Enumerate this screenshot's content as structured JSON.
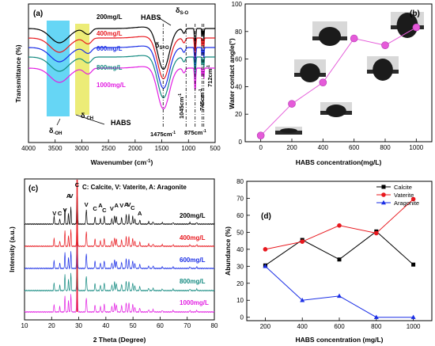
{
  "panels": {
    "a": {
      "label": "(a)",
      "xlabel": "Wavenumber (cm",
      "xlabel_sup": "-1",
      "xlabel_end": ")",
      "ylabel": "Transmittance (%)",
      "ticks": [
        "4000",
        "3500",
        "3000",
        "2500",
        "2000",
        "1500",
        "1000",
        "500"
      ],
      "series": [
        {
          "name": "200mg/L",
          "color": "#000000"
        },
        {
          "name": "400mg/L",
          "color": "#e8181e"
        },
        {
          "name": "600mg/L",
          "color": "#1a2ee6"
        },
        {
          "name": "800mg/L",
          "color": "#138a80"
        },
        {
          "name": "1000mg/L",
          "color": "#e21ee2"
        }
      ],
      "annotations": {
        "habs_top": "HABS",
        "dso_a": "δ",
        "dso_a_sub": "S-O",
        "dso_b": "δ",
        "dso_b_sub": "S=O",
        "doh": "δ",
        "doh_sub": "-OH",
        "dch": "δ",
        "dch_sub": "-CH",
        "habs_bottom": "HABS",
        "p1475": "1475cm",
        "p1475_sup": "-1",
        "p1045": "1045cm",
        "p1045_sup": "-1",
        "p875": "875cm",
        "p875_sup": "-1",
        "p745": "745cm",
        "p745_sup": "-1",
        "p712": "712cm",
        "p712_sup": "-1"
      }
    },
    "b": {
      "label": "(b)",
      "xlabel": "HABS concentration(mg/L)",
      "ylabel": "Water contact angle(°)"
    },
    "c": {
      "label": "(c)",
      "legend_text": "C: Calcite,  V: Vaterite,  A: Aragonite",
      "xlabel": "2 Theta (Degree)",
      "ylabel": "Intensity (a.u.)",
      "peak_letters": [
        "V",
        "C",
        "V",
        "A",
        "V",
        "C",
        "V",
        "C",
        "A",
        "C",
        "V",
        "A",
        "V",
        "A",
        "V",
        "C",
        "A"
      ],
      "series": [
        {
          "name": "200mg/L",
          "color": "#000000"
        },
        {
          "name": "400mg/L",
          "color": "#e8181e"
        },
        {
          "name": "600mg/L",
          "color": "#1a2ee6"
        },
        {
          "name": "800mg/L",
          "color": "#138a80"
        },
        {
          "name": "1000mg/L",
          "color": "#e21ee2"
        }
      ]
    },
    "d": {
      "label": "(d)",
      "xlabel": "HABS concentration (mg/L)",
      "ylabel": "Abundance (%)"
    }
  },
  "chart_data": [
    {
      "type": "line",
      "title": "",
      "xlabel": "Wavenumber (cm-1)",
      "ylabel": "Transmittance (%)",
      "xlim": [
        4000,
        500
      ],
      "series_names": [
        "200mg/L",
        "400mg/L",
        "600mg/L",
        "800mg/L",
        "1000mg/L"
      ],
      "marked_peaks_cm-1": [
        1475,
        1045,
        875,
        745,
        712
      ],
      "highlight_bands_cm-1": [
        [
          3650,
          3250
        ],
        [
          2950,
          2700
        ]
      ]
    },
    {
      "type": "scatter",
      "xlabel": "HABS concentration(mg/L)",
      "ylabel": "Water contact angle(°)",
      "xlim": [
        -100,
        1100
      ],
      "ylim": [
        0,
        100
      ],
      "x": [
        0,
        200,
        400,
        600,
        800,
        1000
      ],
      "y": [
        4.5,
        27.5,
        43,
        75,
        70,
        83
      ],
      "xticks": [
        0,
        200,
        400,
        600,
        800,
        1000
      ],
      "yticks": [
        0,
        20,
        40,
        60,
        80,
        100
      ],
      "color": "#e55ad9"
    },
    {
      "type": "line",
      "xlabel": "2 Theta (Degree)",
      "ylabel": "Intensity (a.u.)",
      "xlim": [
        10,
        80
      ],
      "xticks": [
        10,
        20,
        30,
        40,
        50,
        60,
        70,
        80
      ],
      "series_names": [
        "200mg/L",
        "400mg/L",
        "600mg/L",
        "800mg/L",
        "1000mg/L"
      ],
      "peaks_2theta": [
        21,
        23,
        24.9,
        26.2,
        27.2,
        29.4,
        32.8,
        36,
        38,
        39.4,
        42.2,
        43.9,
        45.8,
        47.5,
        48.5,
        49.9,
        52.5
      ],
      "peak_labels": [
        "V",
        "C",
        "V",
        "A",
        "V",
        "C",
        "V",
        "C",
        "A",
        "C",
        "V",
        "A",
        "V",
        "A",
        "V",
        "C",
        "A"
      ]
    },
    {
      "type": "line",
      "xlabel": "HABS concentration (mg/L)",
      "ylabel": "Abundance (%)",
      "xlim": [
        100,
        1100
      ],
      "ylim": [
        -2,
        80
      ],
      "xticks": [
        200,
        400,
        600,
        800,
        1000
      ],
      "yticks": [
        0,
        10,
        20,
        30,
        40,
        50,
        60,
        70,
        80
      ],
      "categories": [
        200,
        400,
        600,
        800,
        1000
      ],
      "legend_position": "top-right",
      "series": [
        {
          "name": "Calcite",
          "color": "#000000",
          "marker": "square",
          "values": [
            30.5,
            45.5,
            34,
            50.5,
            31
          ]
        },
        {
          "name": "Vaterite",
          "color": "#e8181e",
          "marker": "circle",
          "values": [
            40,
            44.5,
            54,
            49.5,
            69.5
          ]
        },
        {
          "name": "Aragonite",
          "color": "#1a2ee6",
          "marker": "triangle",
          "values": [
            30,
            10,
            12.5,
            0,
            0
          ]
        }
      ]
    }
  ]
}
